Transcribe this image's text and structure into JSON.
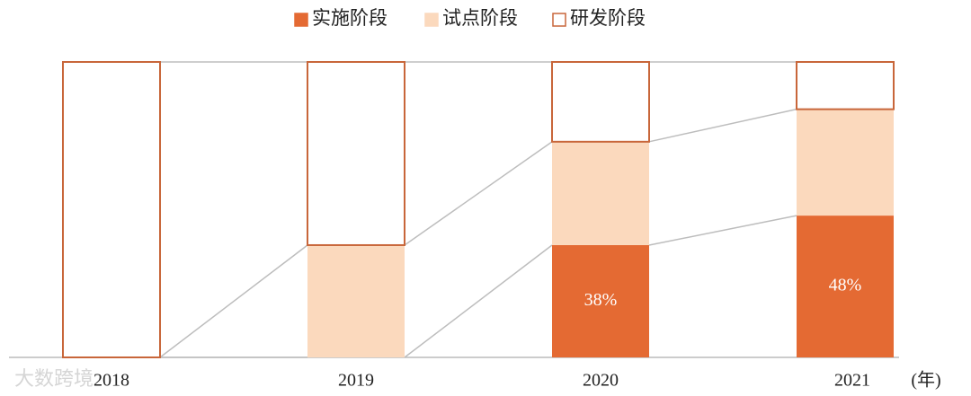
{
  "chart_data": {
    "type": "stacked_bar",
    "categories": [
      "2018",
      "2019",
      "2020",
      "2021"
    ],
    "series": [
      {
        "name": "实施阶段",
        "color": "#e46a33",
        "values": [
          0,
          0,
          38,
          48
        ],
        "value_labels": [
          null,
          null,
          "38%",
          "48%"
        ]
      },
      {
        "name": "试点阶段",
        "color": "#fbd9bd",
        "values": [
          0,
          38,
          35,
          36
        ]
      },
      {
        "name": "研发阶段",
        "color": "#ffffff",
        "edgecolor": "#c8663a",
        "values": [
          100,
          62,
          27,
          16
        ]
      }
    ],
    "ylim": [
      0,
      100
    ],
    "x_label": "(年)",
    "watermark": "大数跨境",
    "legend": "top"
  }
}
